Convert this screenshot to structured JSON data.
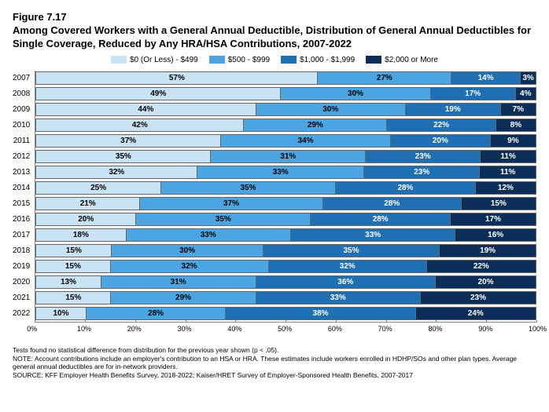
{
  "figure_label": "Figure 7.17",
  "title": "Among Covered Workers with a General Annual Deductible, Distribution of General Annual Deductibles for Single Coverage, Reduced by Any HRA/HSA Contributions, 2007-2022",
  "legend": [
    {
      "label": "$0 (Or Less) - $499",
      "color": "#c9e3f5"
    },
    {
      "label": "$500 - $999",
      "color": "#4aa5e2"
    },
    {
      "label": "$1,000 - $1,999",
      "color": "#1f6fb5"
    },
    {
      "label": "$2,000 or More",
      "color": "#0b2e59"
    }
  ],
  "colors": {
    "bg": "#ffffff",
    "text_dark": "#000000",
    "text_light": "#ffffff"
  },
  "years": [
    "2007",
    "2008",
    "2009",
    "2010",
    "2011",
    "2012",
    "2013",
    "2014",
    "2015",
    "2016",
    "2017",
    "2018",
    "2019",
    "2020",
    "2021",
    "2022"
  ],
  "series": [
    [
      57,
      27,
      14,
      3
    ],
    [
      49,
      30,
      17,
      4
    ],
    [
      44,
      30,
      19,
      7
    ],
    [
      42,
      29,
      22,
      8
    ],
    [
      37,
      34,
      20,
      9
    ],
    [
      35,
      31,
      23,
      11
    ],
    [
      32,
      33,
      23,
      11
    ],
    [
      25,
      35,
      28,
      12
    ],
    [
      21,
      37,
      28,
      15
    ],
    [
      20,
      35,
      28,
      17
    ],
    [
      18,
      33,
      33,
      16
    ],
    [
      15,
      30,
      35,
      19
    ],
    [
      15,
      32,
      32,
      22
    ],
    [
      13,
      31,
      36,
      20
    ],
    [
      15,
      29,
      33,
      23
    ],
    [
      10,
      28,
      38,
      24
    ]
  ],
  "x_ticks": [
    "0%",
    "10%",
    "20%",
    "30%",
    "40%",
    "50%",
    "60%",
    "70%",
    "80%",
    "90%",
    "100%"
  ],
  "note1": "Tests found no statistical difference from distribution for the previous year shown (p <  .05).",
  "note2": "NOTE: Account contributions include an employer's contribution to an HSA or HRA. These estimates include workers enrolled in HDHP/SOs and other plan types. Average general annual deductibles are for in-network providers.",
  "note3": "SOURCE: KFF Employer Health Benefits Survey, 2018-2022; Kaiser/HRET Survey of Employer-Sponsored Health Benefits, 2007-2017"
}
